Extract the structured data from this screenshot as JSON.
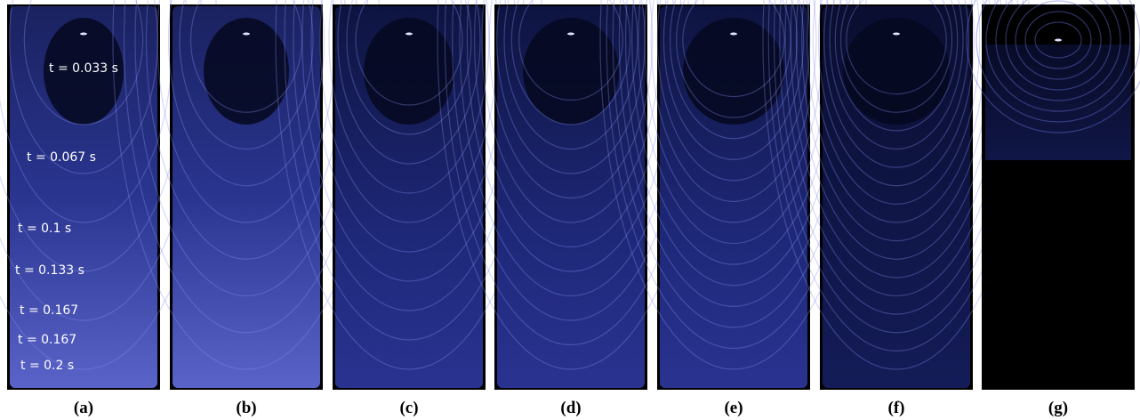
{
  "panels": [
    {
      "label": "(a)"
    },
    {
      "label": "(b)"
    },
    {
      "label": "(c)"
    },
    {
      "label": "(d)"
    },
    {
      "label": "(e)"
    },
    {
      "label": "(f)"
    },
    {
      "label": "(g)"
    }
  ],
  "annotations": [
    "t = 0.033 s",
    "t = 0.067 s",
    "t = 0.1 s",
    "t = 0.133 s",
    "t = 0.167",
    "t = 0.167",
    "t = 0.2 s"
  ]
}
